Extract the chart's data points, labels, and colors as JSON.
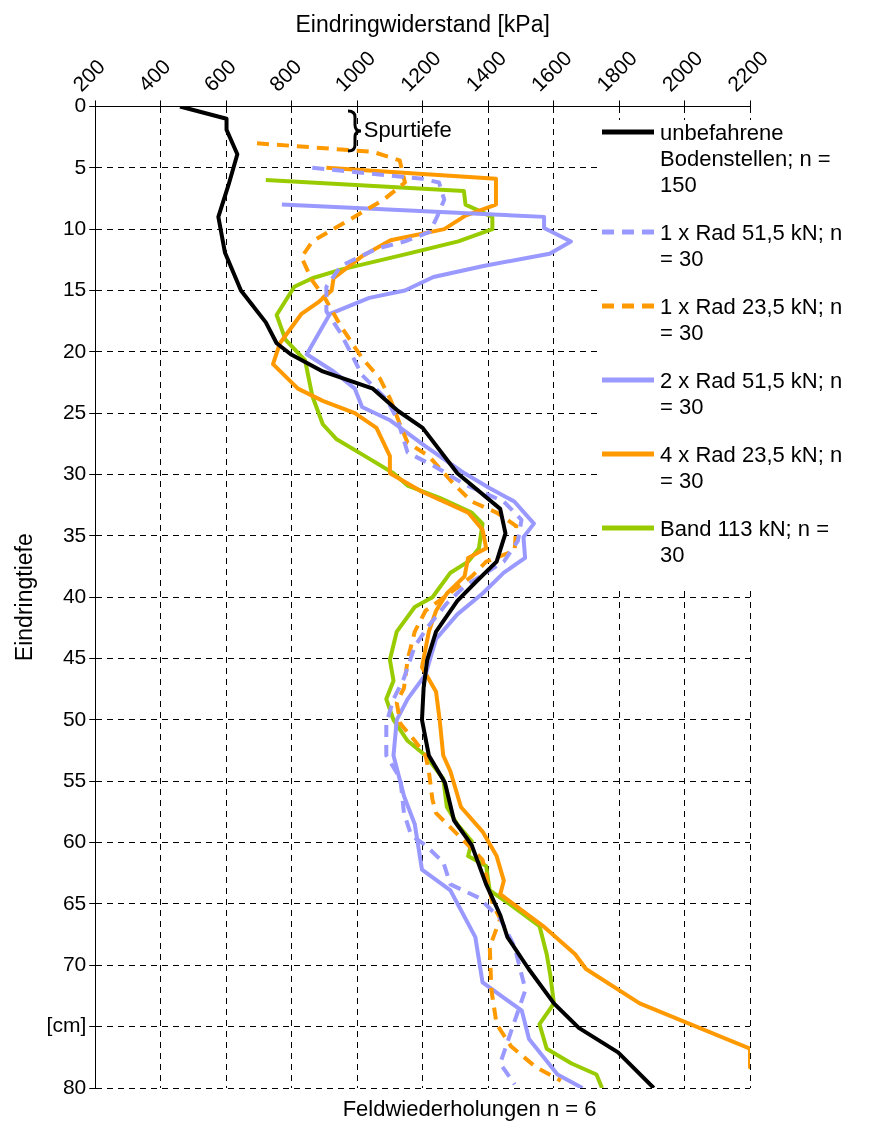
{
  "chart_data": {
    "type": "line",
    "xlabel": "Eindringwiderstand [kPa]",
    "ylabel": "Eindringtiefe",
    "xlim": [
      200,
      2200
    ],
    "xticks": [
      200,
      400,
      600,
      800,
      1000,
      1200,
      1400,
      1600,
      1800,
      2000,
      2200
    ],
    "ylim": [
      80,
      0
    ],
    "yticks": [
      0,
      5,
      10,
      15,
      20,
      25,
      30,
      35,
      40,
      45,
      50,
      55,
      60,
      65,
      70,
      {
        "value": 75,
        "label": "[cm]"
      },
      80
    ],
    "grid": true,
    "legend": "right",
    "annotations": [
      "Spurtiefe",
      "Feldwiederholungen n = 6"
    ],
    "series": [
      {
        "name": "unbefahrene Bodenstellen; n = 150",
        "color": "#000000",
        "line_style": "solid",
        "x": [
          459,
          601,
          601,
          634,
          607,
          576,
          596,
          645,
          721,
          754,
          797,
          895,
          1048,
          1124,
          1200,
          1306,
          1437,
          1453,
          1426,
          1361,
          1306,
          1241,
          1214,
          1203,
          1198,
          1219,
          1268,
          1296,
          1350,
          1394,
          1437,
          1459,
          1524,
          1601,
          1677,
          1797,
          1906
        ],
        "values": [
          0,
          1.0,
          1.9,
          3.9,
          6.4,
          9.0,
          11.9,
          15.0,
          17.6,
          19.3,
          20.2,
          21.6,
          23.0,
          24.8,
          26.2,
          29.9,
          32.8,
          34.8,
          37.1,
          38.8,
          40.3,
          42.8,
          45.1,
          47.4,
          50.0,
          52.9,
          55.1,
          58.2,
          60.2,
          63.4,
          65.9,
          67.7,
          70.3,
          73.1,
          75.1,
          77.1,
          80
        ]
      },
      {
        "name": "1 x Rad 51,5 kN; n = 30",
        "color": "#9999ff",
        "line_style": "dashed",
        "x": [
          863,
          1015,
          1200,
          1250,
          1266,
          1244,
          1223,
          1146,
          1059,
          950,
          906,
          906,
          950,
          983,
          1015,
          1091,
          1124,
          1154,
          1241,
          1328,
          1448,
          1502,
          1491,
          1448,
          1394,
          1328,
          1274,
          1219,
          1176,
          1143,
          1111,
          1089,
          1089,
          1132,
          1143,
          1165,
          1208,
          1263,
          1285,
          1372,
          1437,
          1481,
          1514,
          1470,
          1437,
          1481
        ],
        "values": [
          5.0,
          5.4,
          5.9,
          6.2,
          7.6,
          9.0,
          10.2,
          11.0,
          11.6,
          13.0,
          14.7,
          16.7,
          18.5,
          20.2,
          21.9,
          23.9,
          25.6,
          28.2,
          29.4,
          30.8,
          32.2,
          33.7,
          35.4,
          37.1,
          38.0,
          39.1,
          40.5,
          42.3,
          44.0,
          46.6,
          48.3,
          50.3,
          52.9,
          54.8,
          57.6,
          59.4,
          60.2,
          61.6,
          63.4,
          64.5,
          66.2,
          68.5,
          72.0,
          75.4,
          78.0,
          79.7
        ]
      },
      {
        "name": "1 x Rad 23,5 kN; n = 30",
        "color": "#ff9900",
        "line_style": "dashed",
        "x": [
          694,
          1048,
          1130,
          1146,
          1081,
          972,
          863,
          830,
          863,
          901,
          950,
          1015,
          1070,
          1102,
          1135,
          1154,
          1219,
          1296,
          1350,
          1426,
          1486,
          1481,
          1394,
          1350,
          1296,
          1209,
          1176,
          1154,
          1143,
          1121,
          1132,
          1176,
          1209,
          1219,
          1230,
          1241,
          1328,
          1383,
          1415,
          1437,
          1405,
          1410,
          1426,
          1470,
          1546,
          1622
        ],
        "values": [
          3.0,
          3.7,
          4.4,
          6.2,
          7.6,
          9.3,
          11.0,
          12.3,
          14.2,
          15.6,
          17.9,
          20.5,
          22.2,
          23.9,
          26.2,
          27.4,
          28.5,
          30.8,
          32.2,
          33.1,
          34.2,
          36.2,
          37.1,
          38.3,
          39.4,
          41.1,
          42.8,
          45.1,
          47.4,
          48.6,
          50.3,
          51.7,
          52.9,
          54.2,
          56.5,
          57.6,
          59.9,
          61.4,
          65.1,
          66.2,
          68.5,
          72.0,
          74.8,
          76.6,
          78.3,
          79.4
        ]
      },
      {
        "name": "2 x Rad 51,5 kN; n = 30",
        "color": "#9999ff",
        "line_style": "solid",
        "x": [
          770,
          1571,
          1571,
          1653,
          1588,
          1386,
          1233,
          1146,
          1037,
          917,
          846,
          928,
          993,
          1015,
          1102,
          1209,
          1328,
          1404,
          1480,
          1540,
          1508,
          1513,
          1448,
          1383,
          1306,
          1241,
          1209,
          1154,
          1121,
          1111,
          1143,
          1176,
          1198,
          1285,
          1361,
          1383,
          1503,
          1525,
          1612,
          1688
        ],
        "values": [
          8.0,
          9.0,
          9.9,
          11.0,
          12.0,
          13.0,
          13.9,
          15.0,
          15.6,
          16.9,
          20.2,
          21.6,
          23.0,
          24.5,
          25.6,
          27.7,
          29.9,
          31.1,
          32.2,
          34.0,
          35.1,
          36.8,
          38.0,
          39.7,
          41.4,
          43.4,
          46.3,
          48.3,
          50.0,
          52.9,
          56.2,
          58.5,
          62.2,
          63.9,
          67.7,
          71.4,
          73.7,
          76.0,
          78.9,
          80
        ]
      },
      {
        "name": "4 x Rad 23,5 kN; n = 30",
        "color": "#ff9900",
        "line_style": "solid",
        "x": [
          906,
          1424,
          1424,
          1331,
          1266,
          1102,
          1015,
          928,
          922,
          884,
          830,
          764,
          743,
          819,
          895,
          993,
          1059,
          1100,
          1100,
          1198,
          1339,
          1383,
          1394,
          1339,
          1328,
          1274,
          1241,
          1219,
          1198,
          1241,
          1252,
          1263,
          1285,
          1317,
          1383,
          1426,
          1448,
          1437,
          1568,
          1666,
          1699,
          1863,
          2200,
          2200
        ],
        "values": [
          5.0,
          5.9,
          8.0,
          8.9,
          10.0,
          10.9,
          12.2,
          14.0,
          15.0,
          15.9,
          16.9,
          19.3,
          21.0,
          23.0,
          24.0,
          25.0,
          26.2,
          28.5,
          29.9,
          31.4,
          33.1,
          34.5,
          36.0,
          36.8,
          38.3,
          39.7,
          41.1,
          42.8,
          45.7,
          47.7,
          50.0,
          52.9,
          54.2,
          57.1,
          59.1,
          61.1,
          63.1,
          64.2,
          66.8,
          69.1,
          70.3,
          73.1,
          76.8,
          78.3
        ]
      },
      {
        "name": "Band 113 kN; n = 30",
        "color": "#99cc00",
        "line_style": "solid",
        "x": [
          721,
          1326,
          1331,
          1413,
          1413,
          1309,
          1124,
          950,
          863,
          808,
          754,
          781,
          841,
          863,
          895,
          936,
          1024,
          1111,
          1154,
          1252,
          1350,
          1383,
          1372,
          1339,
          1285,
          1230,
          1176,
          1121,
          1100,
          1111,
          1089,
          1111,
          1154,
          1209,
          1263,
          1274,
          1306,
          1350,
          1339,
          1394,
          1405,
          1470,
          1557,
          1579,
          1590,
          1601,
          1557,
          1579,
          1655,
          1731,
          1748
        ],
        "values": [
          6.0,
          6.9,
          8.0,
          9.0,
          10.0,
          11.0,
          12.2,
          13.3,
          14.0,
          14.7,
          17.0,
          19.0,
          20.7,
          23.6,
          25.9,
          27.1,
          28.5,
          29.9,
          30.9,
          31.9,
          33.1,
          34.0,
          36.0,
          37.1,
          38.0,
          40.0,
          40.8,
          42.8,
          45.1,
          46.8,
          48.3,
          50.0,
          51.7,
          52.9,
          54.8,
          57.1,
          58.5,
          59.9,
          61.1,
          61.9,
          63.9,
          65.1,
          66.8,
          69.1,
          70.8,
          73.1,
          74.8,
          76.8,
          78.0,
          78.9,
          80
        ]
      }
    ]
  }
}
